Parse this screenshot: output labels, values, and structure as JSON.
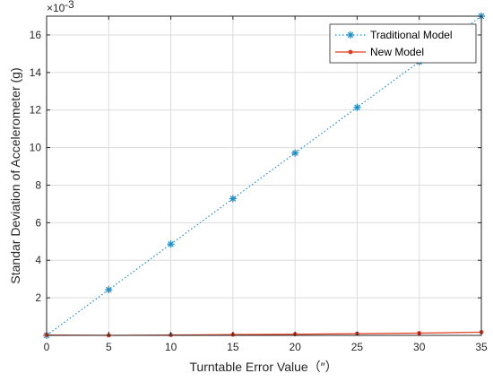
{
  "chart_data": {
    "type": "line",
    "title": "",
    "xlabel": "Turntable Error Value（″）",
    "ylabel": "Standar Deviation of Accelerometer (g)",
    "y_exponent_base": "×10",
    "y_exponent_power": "-3",
    "xlim": [
      0,
      35
    ],
    "ylim": [
      0,
      17
    ],
    "x_ticks": [
      0,
      5,
      10,
      15,
      20,
      25,
      30,
      35
    ],
    "y_ticks": [
      2,
      4,
      6,
      8,
      10,
      12,
      14,
      16
    ],
    "grid": true,
    "legend_position": "top-right",
    "x": [
      0,
      5,
      10,
      15,
      20,
      25,
      30,
      35
    ],
    "series": [
      {
        "name": "Traditional Model",
        "values": [
          0,
          2.43,
          4.86,
          7.28,
          9.71,
          12.14,
          14.57,
          17.0
        ],
        "color": "#1f8ec8",
        "line_style": "dotted",
        "marker": "asterisk"
      },
      {
        "name": "New Model",
        "values": [
          0.02,
          0.0,
          0.02,
          0.04,
          0.06,
          0.09,
          0.12,
          0.17
        ],
        "color": "#e03a1e",
        "line_style": "solid",
        "marker": "dot"
      }
    ]
  }
}
